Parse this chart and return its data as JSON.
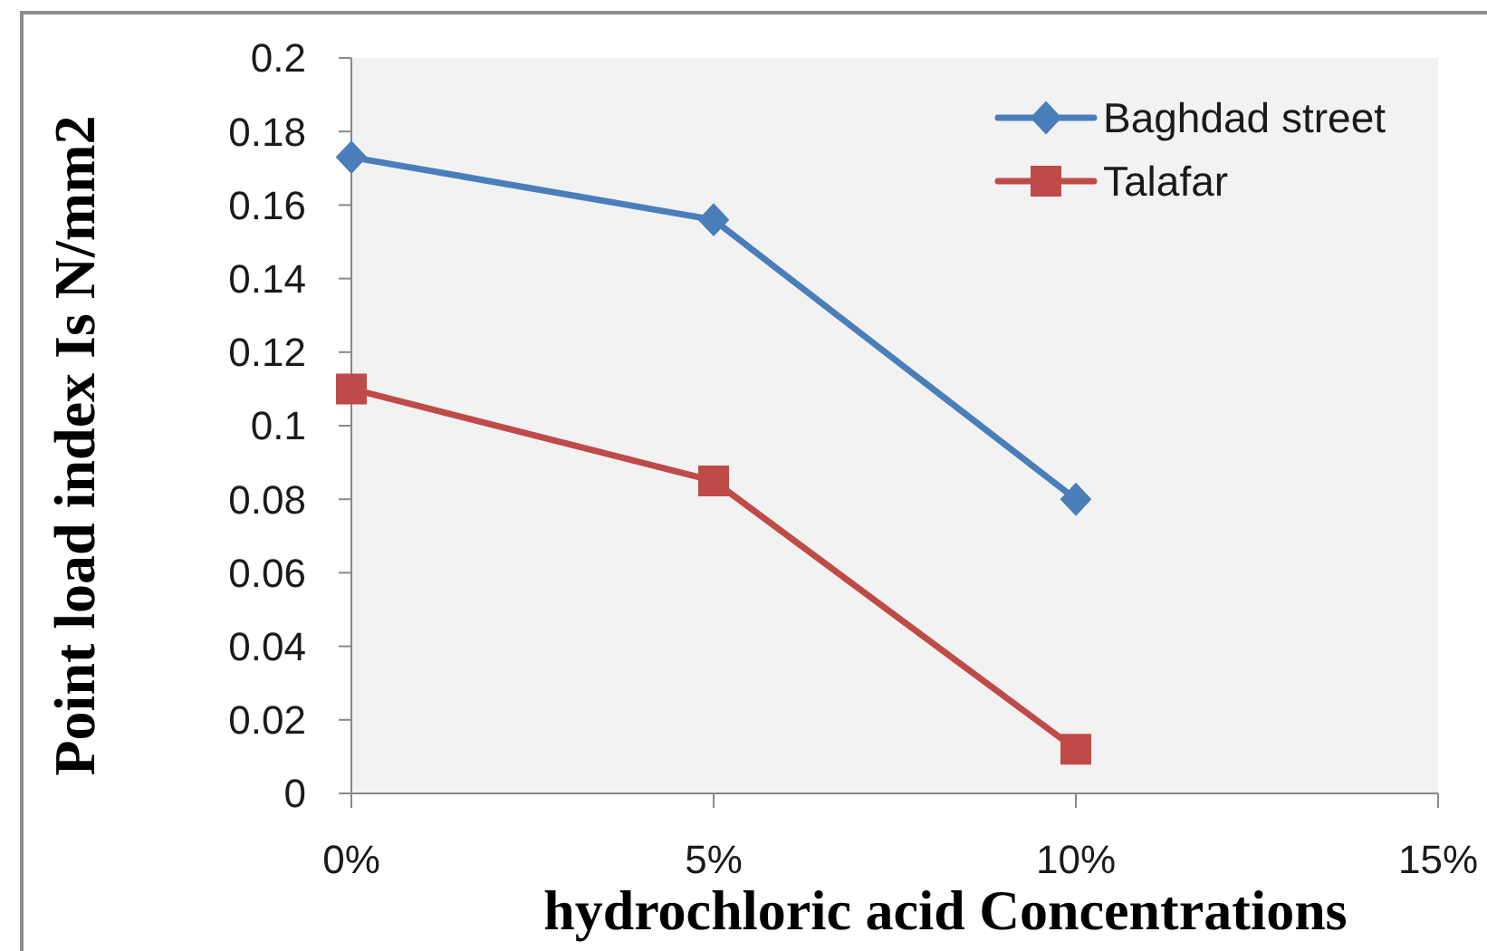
{
  "chart_data": {
    "type": "line",
    "xlabel": "hydrochloric acid Concentrations",
    "ylabel": "Point load index Is N/mm2",
    "x": [
      0,
      5,
      10
    ],
    "series": [
      {
        "name": "Baghdad street",
        "color": "#4a7ebb",
        "marker": "diamond",
        "values": [
          0.173,
          0.156,
          0.08
        ]
      },
      {
        "name": "Talafar",
        "color": "#be4b48",
        "marker": "square",
        "values": [
          0.11,
          0.085,
          0.012
        ]
      }
    ],
    "xlim": [
      0,
      15
    ],
    "xticks": [
      {
        "value": 0,
        "label": "0%"
      },
      {
        "value": 5,
        "label": "5%"
      },
      {
        "value": 10,
        "label": "10%"
      },
      {
        "value": 15,
        "label": "15%"
      }
    ],
    "ylim": [
      0,
      0.2
    ],
    "yticks": [
      0,
      0.02,
      0.04,
      0.06,
      0.08,
      0.1,
      0.12,
      0.14,
      0.16,
      0.18,
      0.2
    ],
    "legend": "top right",
    "line_style": "solid"
  }
}
